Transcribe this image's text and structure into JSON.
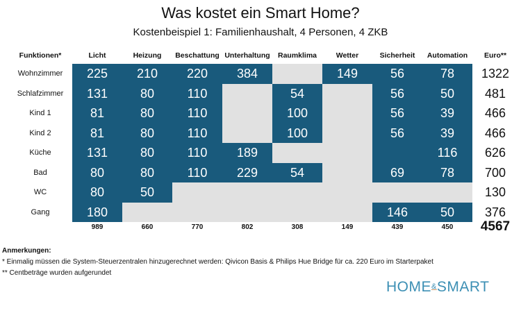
{
  "title": "Was kostet ein Smart Home?",
  "subtitle": "Kostenbeispiel 1: Familienhaushalt, 4 Personen, 4 ZKB",
  "colors": {
    "cell_blue": "#195a7c",
    "cell_grey": "#e1e1e1"
  },
  "corner_label": "Funktionen*",
  "columns": [
    "Licht",
    "Heizung",
    "Beschattung",
    "Unterhaltung",
    "Raumklima",
    "Wetter",
    "Sicherheit",
    "Automation"
  ],
  "sum_label": "Euro**",
  "rows": [
    {
      "label": "Wohnzimmer",
      "values": [
        "225",
        "210",
        "220",
        "384",
        null,
        "149",
        "56",
        "78"
      ],
      "sum": "1322"
    },
    {
      "label": "Schlafzimmer",
      "values": [
        "131",
        "80",
        "110",
        null,
        "54",
        null,
        "56",
        "50"
      ],
      "sum": "481"
    },
    {
      "label": "Kind 1",
      "values": [
        "81",
        "80",
        "110",
        null,
        "100",
        null,
        "56",
        "39"
      ],
      "sum": "466"
    },
    {
      "label": "Kind 2",
      "values": [
        "81",
        "80",
        "110",
        null,
        "100",
        null,
        "56",
        "39"
      ],
      "sum": "466"
    },
    {
      "label": "Küche",
      "values": [
        "131",
        "80",
        "110",
        "189",
        null,
        null,
        "",
        "116"
      ],
      "sum": "626"
    },
    {
      "label": "Bad",
      "values": [
        "80",
        "80",
        "110",
        "229",
        "54",
        null,
        "69",
        "78"
      ],
      "sum": "700"
    },
    {
      "label": "WC",
      "values": [
        "80",
        "50",
        null,
        null,
        null,
        null,
        null,
        null
      ],
      "sum": "130"
    },
    {
      "label": "Gang",
      "values": [
        "180",
        null,
        null,
        null,
        null,
        null,
        "146",
        "50"
      ],
      "sum": "376"
    }
  ],
  "totals": [
    "989",
    "660",
    "770",
    "802",
    "308",
    "149",
    "439",
    "450"
  ],
  "grand_total": "4567",
  "notes": {
    "heading": "Anmerkungen:",
    "lines": [
      "* Einmalig müssen die System-Steuerzentralen hinzugerechnet werden: Qivicon Basis & Philips Hue Bridge für ca. 220 Euro im Starterpaket",
      "** Centbeträge wurden aufgerundet"
    ]
  },
  "logo": {
    "left": "HOME",
    "amp": "&",
    "right": "SMART"
  }
}
